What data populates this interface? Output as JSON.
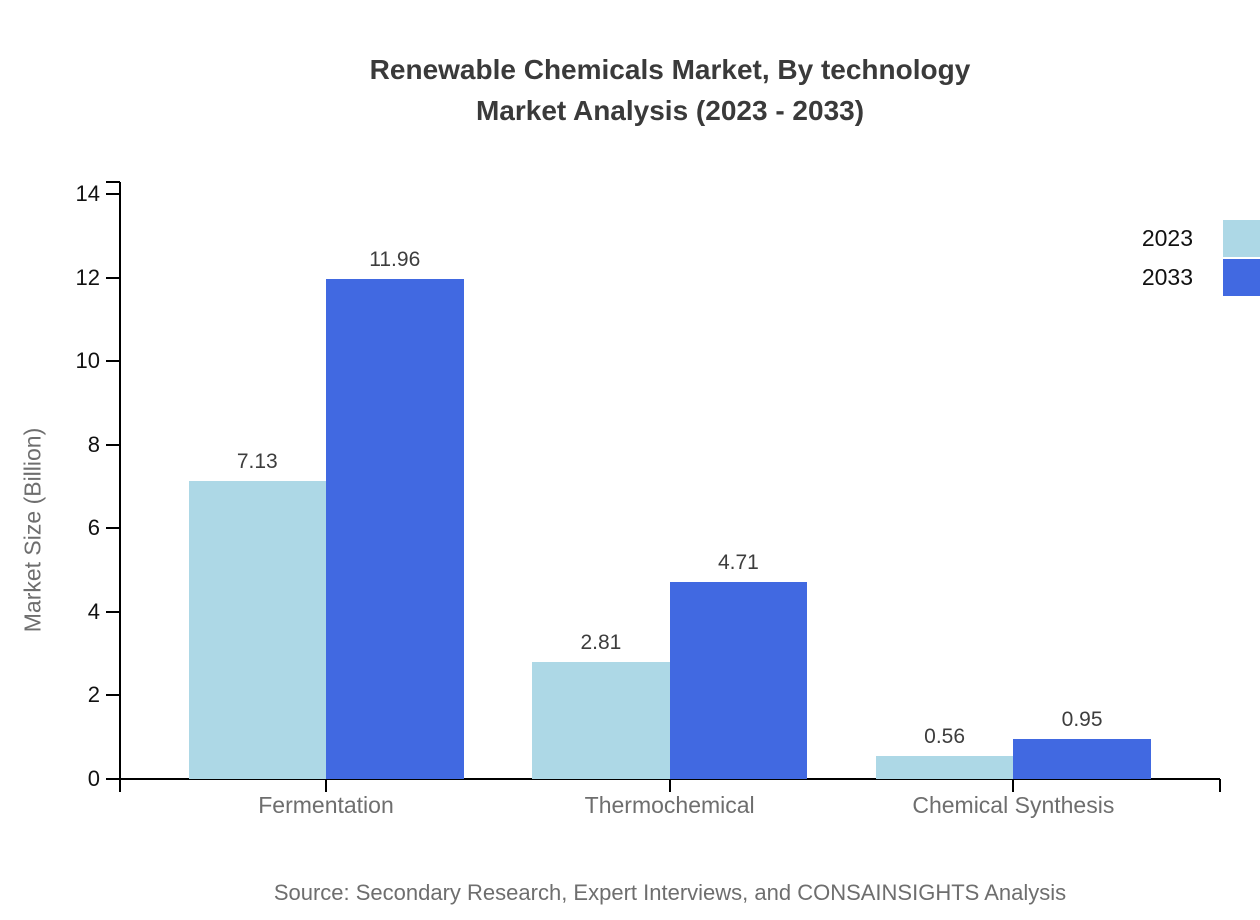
{
  "page": {
    "background": "#ffffff"
  },
  "chart_data": {
    "type": "bar",
    "title_lines": [
      "Renewable Chemicals Market, By technology",
      "Market Analysis (2023 - 2033)"
    ],
    "categories": [
      "Fermentation",
      "Thermochemical",
      "Chemical Synthesis"
    ],
    "series": [
      {
        "name": "2023",
        "color": "#ADD8E6",
        "values": [
          7.13,
          2.81,
          0.56
        ]
      },
      {
        "name": "2033",
        "color": "#4169E1",
        "values": [
          11.96,
          4.71,
          0.95
        ]
      }
    ],
    "xlabel": "",
    "ylabel": "Market Size (Billion)",
    "ylim": [
      0,
      14
    ],
    "ytick_step": 2,
    "grid": false,
    "legend_position": "top-right",
    "value_label_decimals": 2,
    "source_note": "Source: Secondary Research, Expert Interviews, and CONSAINSIGHTS Analysis"
  },
  "colors": {
    "title_text": "#3a3a3a",
    "axis_line": "#000000",
    "tick_label": "#111111",
    "category_label": "#6e6e6e",
    "value_label": "#3d3d3d",
    "legend_label": "#111111",
    "muted_text": "#6e6e6e",
    "series_2023": "#ADD8E6",
    "series_2033": "#4169E1"
  }
}
